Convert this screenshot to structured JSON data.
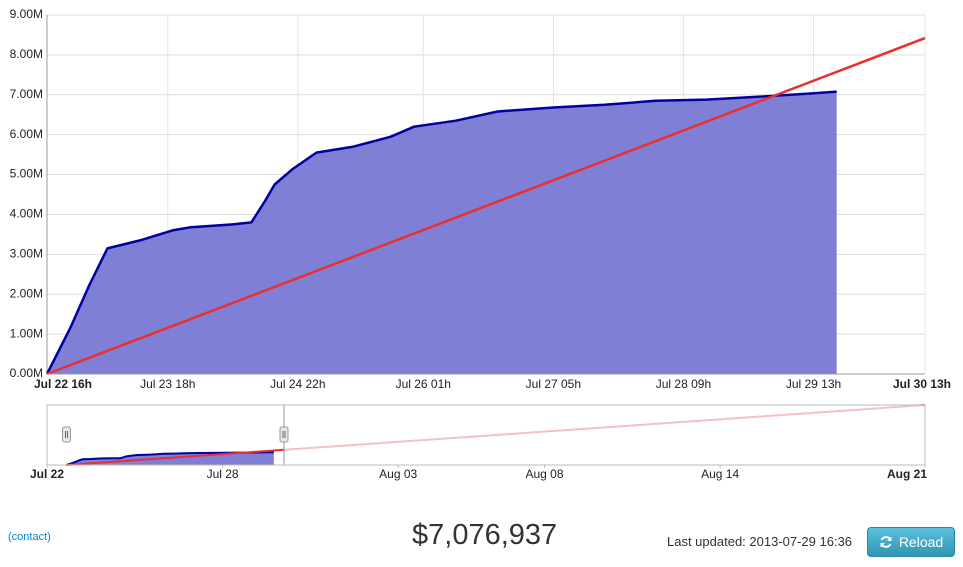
{
  "chart_data": [
    {
      "type": "area",
      "ylim": [
        0,
        9
      ],
      "yticks": [
        {
          "value": 0,
          "label": "0.00M"
        },
        {
          "value": 1,
          "label": "1.00M"
        },
        {
          "value": 2,
          "label": "2.00M"
        },
        {
          "value": 3,
          "label": "3.00M"
        },
        {
          "value": 4,
          "label": "4.00M"
        },
        {
          "value": 5,
          "label": "5.00M"
        },
        {
          "value": 6,
          "label": "6.00M"
        },
        {
          "value": 7,
          "label": "7.00M"
        },
        {
          "value": 8,
          "label": "8.00M"
        },
        {
          "value": 9,
          "label": "9.00M"
        }
      ],
      "xlim": [
        "Jul 22 16h",
        "Jul 30 13h"
      ],
      "xticks": [
        "Jul 22 16h",
        "Jul 23 18h",
        "Jul 24 22h",
        "Jul 26 01h",
        "Jul 27 05h",
        "Jul 28 09h",
        "Jul 29 13h",
        "Jul 30 13h"
      ],
      "grid": true,
      "series": [
        {
          "type": "area",
          "color": "#0000a0",
          "fill": "#7f80d5",
          "x": [
            "Jul 22 16h",
            "Jul 22 21h",
            "Jul 23 01h",
            "Jul 23 05h",
            "Jul 23 12h",
            "Jul 23 19h",
            "Jul 23 23h",
            "Jul 24 08h",
            "Jul 24 12h",
            "Jul 24 15h",
            "Jul 24 17h",
            "Jul 24 21h",
            "Jul 25 02h",
            "Jul 25 10h",
            "Jul 25 18h",
            "Jul 25 23h",
            "Jul 26 08h",
            "Jul 26 17h",
            "Jul 27 05h",
            "Jul 27 16h",
            "Jul 28 03h",
            "Jul 28 14h",
            "Jul 29 01h",
            "Jul 29 12h",
            "Jul 29 18h"
          ],
          "values": [
            0,
            1.15,
            2.2,
            3.15,
            3.35,
            3.6,
            3.68,
            3.75,
            3.8,
            4.35,
            4.75,
            5.15,
            5.55,
            5.7,
            5.95,
            6.2,
            6.35,
            6.58,
            6.68,
            6.75,
            6.85,
            6.88,
            6.95,
            7.03,
            7.08
          ]
        },
        {
          "type": "line",
          "color": "#e83030",
          "x": [
            "Jul 22 16h",
            "Jul 30 13h"
          ],
          "values": [
            0,
            8.42
          ]
        }
      ]
    },
    {
      "type": "navigator",
      "ylim": [
        0,
        31.3
      ],
      "xlim": [
        "Jul 22",
        "Aug 21"
      ],
      "xticks": [
        "Jul 22",
        "Jul 28",
        "Aug 03",
        "Aug 08",
        "Aug 14",
        "Aug 21"
      ],
      "series": [
        {
          "type": "line",
          "color": "#e83030",
          "x": [
            "Jul 22 16h",
            "Aug 21"
          ],
          "values": [
            0,
            31.3
          ]
        }
      ]
    }
  ],
  "footer": {
    "contact": "(contact)",
    "total": "$7,076,937",
    "updated": "Last updated: 2013-07-29 16:36",
    "reload": "Reload"
  }
}
